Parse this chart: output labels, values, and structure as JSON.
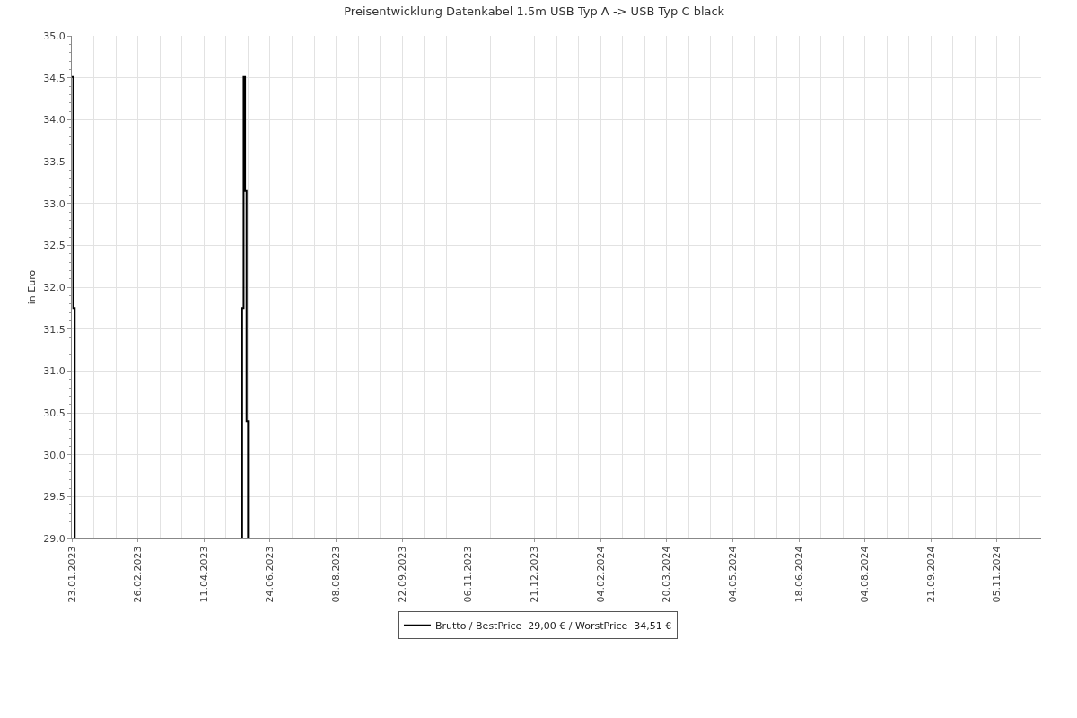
{
  "chart_data": {
    "type": "step",
    "title": "Preisentwicklung Datenkabel 1.5m USB Typ A -> USB Typ C black",
    "ylabel": "in Euro",
    "categories": [
      "23.01.2023",
      null,
      null,
      null,
      null,
      null,
      null,
      null,
      null,
      null,
      null,
      null,
      null,
      null,
      null,
      null,
      null,
      null,
      null,
      null,
      null,
      null,
      null,
      null,
      null,
      null,
      null,
      null,
      null,
      null,
      null,
      null,
      null,
      null,
      null,
      null,
      null,
      null,
      null,
      null,
      null,
      null,
      null,
      null,
      null,
      "26.02.2023",
      null,
      null,
      null,
      null,
      null,
      null,
      null,
      null,
      null,
      null,
      null,
      null,
      null,
      null,
      null,
      null,
      null,
      null,
      null,
      null,
      null,
      null,
      null,
      null,
      null,
      null,
      null,
      null,
      null,
      null,
      null,
      null,
      null,
      null,
      null,
      null,
      null,
      null,
      null,
      null,
      null,
      null,
      null,
      null,
      "11.04.2023",
      null,
      null,
      null,
      null,
      null,
      null,
      null,
      null,
      null,
      null,
      null,
      null,
      null,
      null,
      null,
      null,
      null,
      null,
      null,
      null,
      null,
      null,
      null,
      null,
      null,
      null,
      null,
      null,
      null,
      null,
      null,
      null,
      null,
      null,
      null,
      null,
      null,
      null,
      null,
      null,
      null,
      null,
      null,
      null,
      "24.06.2023",
      null,
      null,
      null,
      null,
      null,
      null,
      null,
      null,
      null,
      null,
      null,
      null,
      null,
      null,
      null,
      null,
      null,
      null,
      null,
      null,
      null,
      null,
      null,
      null,
      null,
      null,
      null,
      null,
      null,
      null,
      null,
      null,
      null,
      null,
      null,
      null,
      null,
      null,
      null,
      null,
      null,
      null,
      null,
      null,
      "08.08.2023",
      null,
      null,
      null,
      null,
      null,
      null,
      null,
      null,
      null,
      null,
      null,
      null,
      null,
      null,
      null,
      null,
      null,
      null,
      null,
      null,
      null,
      null,
      null,
      null,
      null,
      null,
      null,
      null,
      null,
      null,
      null,
      null,
      null,
      null,
      null,
      null,
      null,
      null,
      null,
      null,
      null,
      null,
      null,
      null,
      "22.09.2023",
      null,
      null,
      null,
      null,
      null,
      null,
      null,
      null,
      null,
      null,
      null,
      null,
      null,
      null,
      null,
      null,
      null,
      null,
      null,
      null,
      null,
      null,
      null,
      null,
      null,
      null,
      null,
      null,
      null,
      null,
      null,
      null,
      null,
      null,
      null,
      null,
      null,
      null,
      null,
      null,
      null,
      null,
      null,
      null,
      "06.11.2023",
      null,
      null,
      null,
      null,
      null,
      null,
      null,
      null,
      null,
      null,
      null,
      null,
      null,
      null,
      null,
      null,
      null,
      null,
      null,
      null,
      null,
      null,
      null,
      null,
      null,
      null,
      null,
      null,
      null,
      null,
      null,
      null,
      null,
      null,
      null,
      null,
      null,
      null,
      null,
      null,
      null,
      null,
      null,
      null,
      "21.12.2023",
      null,
      null,
      null,
      null,
      null,
      null,
      null,
      null,
      null,
      null,
      null,
      null,
      null,
      null,
      null,
      null,
      null,
      null,
      null,
      null,
      null,
      null,
      null,
      null,
      null,
      null,
      null,
      null,
      null,
      null,
      null,
      null,
      null,
      null,
      null,
      null,
      null,
      null,
      null,
      null,
      null,
      null,
      null,
      null,
      "04.02.2024",
      null,
      null,
      null,
      null,
      null,
      null,
      null,
      null,
      null,
      null,
      null,
      null,
      null,
      null,
      null,
      null,
      null,
      null,
      null,
      null,
      null,
      null,
      null,
      null,
      null,
      null,
      null,
      null,
      null,
      null,
      null,
      null,
      null,
      null,
      null,
      null,
      null,
      null,
      null,
      null,
      null,
      null,
      null,
      null,
      "20.03.2024",
      null,
      null,
      null,
      null,
      null,
      null,
      null,
      null,
      null,
      null,
      null,
      null,
      null,
      null,
      null,
      null,
      null,
      null,
      null,
      null,
      null,
      null,
      null,
      null,
      null,
      null,
      null,
      null,
      null,
      null,
      null,
      null,
      null,
      null,
      null,
      null,
      null,
      null,
      null,
      null,
      null,
      null,
      null,
      null,
      "04.05.2024",
      null,
      null,
      null,
      null,
      null,
      null,
      null,
      null,
      null,
      null,
      null,
      null,
      null,
      null,
      null,
      null,
      null,
      null,
      null,
      null,
      null,
      null,
      null,
      null,
      null,
      null,
      null,
      null,
      null,
      null,
      null,
      null,
      null,
      null,
      null,
      null,
      null,
      null,
      null,
      null,
      null,
      null,
      null,
      null,
      "18.06.2024",
      null,
      null,
      null,
      null,
      null,
      null,
      null,
      null,
      null,
      null,
      null,
      null,
      null,
      null,
      null,
      null,
      null,
      null,
      null,
      null,
      null,
      null,
      null,
      null,
      null,
      null,
      null,
      null,
      null,
      null,
      null,
      null,
      null,
      null,
      null,
      null,
      null,
      null,
      null,
      null,
      null,
      null,
      null,
      null,
      "04.08.2024",
      null,
      null,
      null,
      null,
      null,
      null,
      null,
      null,
      null,
      null,
      null,
      null,
      null,
      null,
      null,
      null,
      null,
      null,
      null,
      null,
      null,
      null,
      null,
      null,
      null,
      null,
      null,
      null,
      null,
      null,
      null,
      null,
      null,
      null,
      null,
      null,
      null,
      null,
      null,
      null,
      null,
      null,
      null,
      null,
      "21.09.2024",
      null,
      null,
      null,
      null,
      null,
      null,
      null,
      null,
      null,
      null,
      null,
      null,
      null,
      null,
      null,
      null,
      null,
      null,
      null,
      null,
      null,
      null,
      null,
      null,
      null,
      null,
      null,
      null,
      null,
      null,
      null,
      null,
      null,
      null,
      null,
      null,
      null,
      null,
      null,
      null,
      null,
      null,
      null,
      null,
      "05.11.2024",
      null,
      null,
      null,
      null,
      null,
      null,
      null,
      null,
      null,
      null,
      null,
      null,
      null,
      null,
      null,
      null,
      null,
      null,
      null,
      null,
      null,
      null,
      null,
      null,
      null,
      null,
      null,
      null,
      null,
      null
    ],
    "series": [
      {
        "name": "Brutto / BestPrice  29,00 € / WorstPrice  34,51 €",
        "color": "#000000",
        "values": [
          34.51,
          31.75,
          29,
          29,
          29,
          29,
          29,
          29,
          29,
          29,
          29,
          29,
          29,
          29,
          29,
          29,
          29,
          29,
          29,
          29,
          29,
          29,
          29,
          29,
          29,
          29,
          29,
          29,
          29,
          29,
          29,
          29,
          29,
          29,
          29,
          29,
          29,
          29,
          29,
          29,
          29,
          29,
          29,
          29,
          29,
          29,
          29,
          29,
          29,
          29,
          29,
          29,
          29,
          29,
          29,
          29,
          29,
          29,
          29,
          29,
          29,
          29,
          29,
          29,
          29,
          29,
          29,
          29,
          29,
          29,
          29,
          29,
          29,
          29,
          29,
          29,
          29,
          29,
          29,
          29,
          29,
          29,
          29,
          29,
          29,
          29,
          29,
          29,
          29,
          29,
          29,
          29,
          29,
          29,
          29,
          29,
          29,
          29,
          29,
          29,
          29,
          29,
          29,
          29,
          29,
          29,
          29,
          29,
          29,
          29,
          29,
          29,
          29,
          29,
          29,
          29,
          31.75,
          34.51,
          33.15,
          30.4,
          29,
          29,
          29,
          29,
          29,
          29,
          29,
          29,
          29,
          29,
          29,
          29,
          29,
          29,
          29,
          29,
          29,
          29,
          29,
          29,
          29,
          29,
          29,
          29,
          29,
          29,
          29,
          29,
          29,
          29,
          29,
          29,
          29,
          29,
          29,
          29,
          29,
          29,
          29,
          29,
          29,
          29,
          29,
          29,
          29,
          29,
          29,
          29,
          29,
          29,
          29,
          29,
          29,
          29,
          29,
          29,
          29,
          29,
          29,
          29,
          29,
          29,
          29,
          29,
          29,
          29,
          29,
          29,
          29,
          29,
          29,
          29,
          29,
          29,
          29,
          29,
          29,
          29,
          29,
          29,
          29,
          29,
          29,
          29,
          29,
          29,
          29,
          29,
          29,
          29,
          29,
          29,
          29,
          29,
          29,
          29,
          29,
          29,
          29,
          29,
          29,
          29,
          29,
          29,
          29,
          29,
          29,
          29,
          29,
          29,
          29,
          29,
          29,
          29,
          29,
          29,
          29,
          29,
          29,
          29,
          29,
          29,
          29,
          29,
          29,
          29,
          29,
          29,
          29,
          29,
          29,
          29,
          29,
          29,
          29,
          29,
          29,
          29,
          29,
          29,
          29,
          29,
          29,
          29,
          29,
          29,
          29,
          29,
          29,
          29,
          29,
          29,
          29,
          29,
          29,
          29,
          29,
          29,
          29,
          29,
          29,
          29,
          29,
          29,
          29,
          29,
          29,
          29,
          29,
          29,
          29,
          29,
          29,
          29,
          29,
          29,
          29,
          29,
          29,
          29,
          29,
          29,
          29,
          29,
          29,
          29,
          29,
          29,
          29,
          29,
          29,
          29,
          29,
          29,
          29,
          29,
          29,
          29,
          29,
          29,
          29,
          29,
          29,
          29,
          29,
          29,
          29,
          29,
          29,
          29,
          29,
          29,
          29,
          29,
          29,
          29,
          29,
          29,
          29,
          29,
          29,
          29,
          29,
          29,
          29,
          29,
          29,
          29,
          29,
          29,
          29,
          29,
          29,
          29,
          29,
          29,
          29,
          29,
          29,
          29,
          29,
          29,
          29,
          29,
          29,
          29,
          29,
          29,
          29,
          29,
          29,
          29,
          29,
          29,
          29,
          29,
          29,
          29,
          29,
          29,
          29,
          29,
          29,
          29,
          29,
          29,
          29,
          29,
          29,
          29,
          29,
          29,
          29,
          29,
          29,
          29,
          29,
          29,
          29,
          29,
          29,
          29,
          29,
          29,
          29,
          29,
          29,
          29,
          29,
          29,
          29,
          29,
          29,
          29,
          29,
          29,
          29,
          29,
          29,
          29,
          29,
          29,
          29,
          29,
          29,
          29,
          29,
          29,
          29,
          29,
          29,
          29,
          29,
          29,
          29,
          29,
          29,
          29,
          29,
          29,
          29,
          29,
          29,
          29,
          29,
          29,
          29,
          29,
          29,
          29,
          29,
          29,
          29,
          29,
          29,
          29,
          29,
          29,
          29,
          29,
          29,
          29,
          29,
          29,
          29,
          29,
          29,
          29,
          29,
          29,
          29,
          29,
          29,
          29,
          29,
          29,
          29,
          29,
          29,
          29,
          29,
          29,
          29,
          29,
          29,
          29,
          29,
          29,
          29,
          29,
          29,
          29,
          29,
          29,
          29,
          29,
          29,
          29,
          29,
          29,
          29,
          29,
          29,
          29,
          29,
          29,
          29,
          29,
          29,
          29,
          29,
          29,
          29,
          29,
          29,
          29,
          29,
          29,
          29,
          29,
          29,
          29,
          29,
          29,
          29,
          29,
          29,
          29,
          29,
          29,
          29,
          29,
          29,
          29,
          29,
          29,
          29,
          29,
          29,
          29,
          29,
          29,
          29,
          29,
          29,
          29,
          29,
          29,
          29,
          29,
          29,
          29,
          29,
          29,
          29,
          29,
          29,
          29,
          29,
          29,
          29,
          29,
          29,
          29,
          29,
          29,
          29,
          29,
          29,
          29,
          29,
          29,
          29,
          29,
          29,
          29,
          29,
          29,
          29,
          29,
          29,
          29,
          29,
          29,
          29,
          29,
          29,
          29,
          29,
          29,
          29,
          29,
          29,
          29,
          29,
          29,
          29,
          29,
          29,
          29,
          29,
          29,
          29,
          29,
          29,
          29,
          29,
          29,
          29,
          29,
          29,
          29,
          29,
          29,
          29,
          29,
          29,
          29,
          29,
          29,
          29,
          29,
          29,
          29,
          29,
          29,
          29,
          29,
          29,
          29,
          29,
          29,
          29,
          29,
          29,
          29,
          29,
          29,
          29,
          29,
          29,
          29,
          29,
          29,
          29,
          29,
          29,
          29,
          29,
          29,
          29,
          29,
          29,
          29,
          null,
          null,
          null,
          null,
          null,
          null,
          null
        ]
      }
    ],
    "ylim": [
      29,
      35
    ],
    "yticks": [
      {
        "value": 29,
        "label": "29.0"
      },
      {
        "value": 29.5,
        "label": "29.5"
      },
      {
        "value": 30,
        "label": "30.0"
      },
      {
        "value": 30.5,
        "label": "30.5"
      },
      {
        "value": 31,
        "label": "31.0"
      },
      {
        "value": 31.5,
        "label": "31.5"
      },
      {
        "value": 32,
        "label": "32.0"
      },
      {
        "value": 32.5,
        "label": "32.5"
      },
      {
        "value": 33,
        "label": "33.0"
      },
      {
        "value": 33.5,
        "label": "33.5"
      },
      {
        "value": 34,
        "label": "34.0"
      },
      {
        "value": 34.5,
        "label": "34.5"
      },
      {
        "value": 35,
        "label": "35.0"
      }
    ],
    "grid": true,
    "legend": "bottom"
  }
}
